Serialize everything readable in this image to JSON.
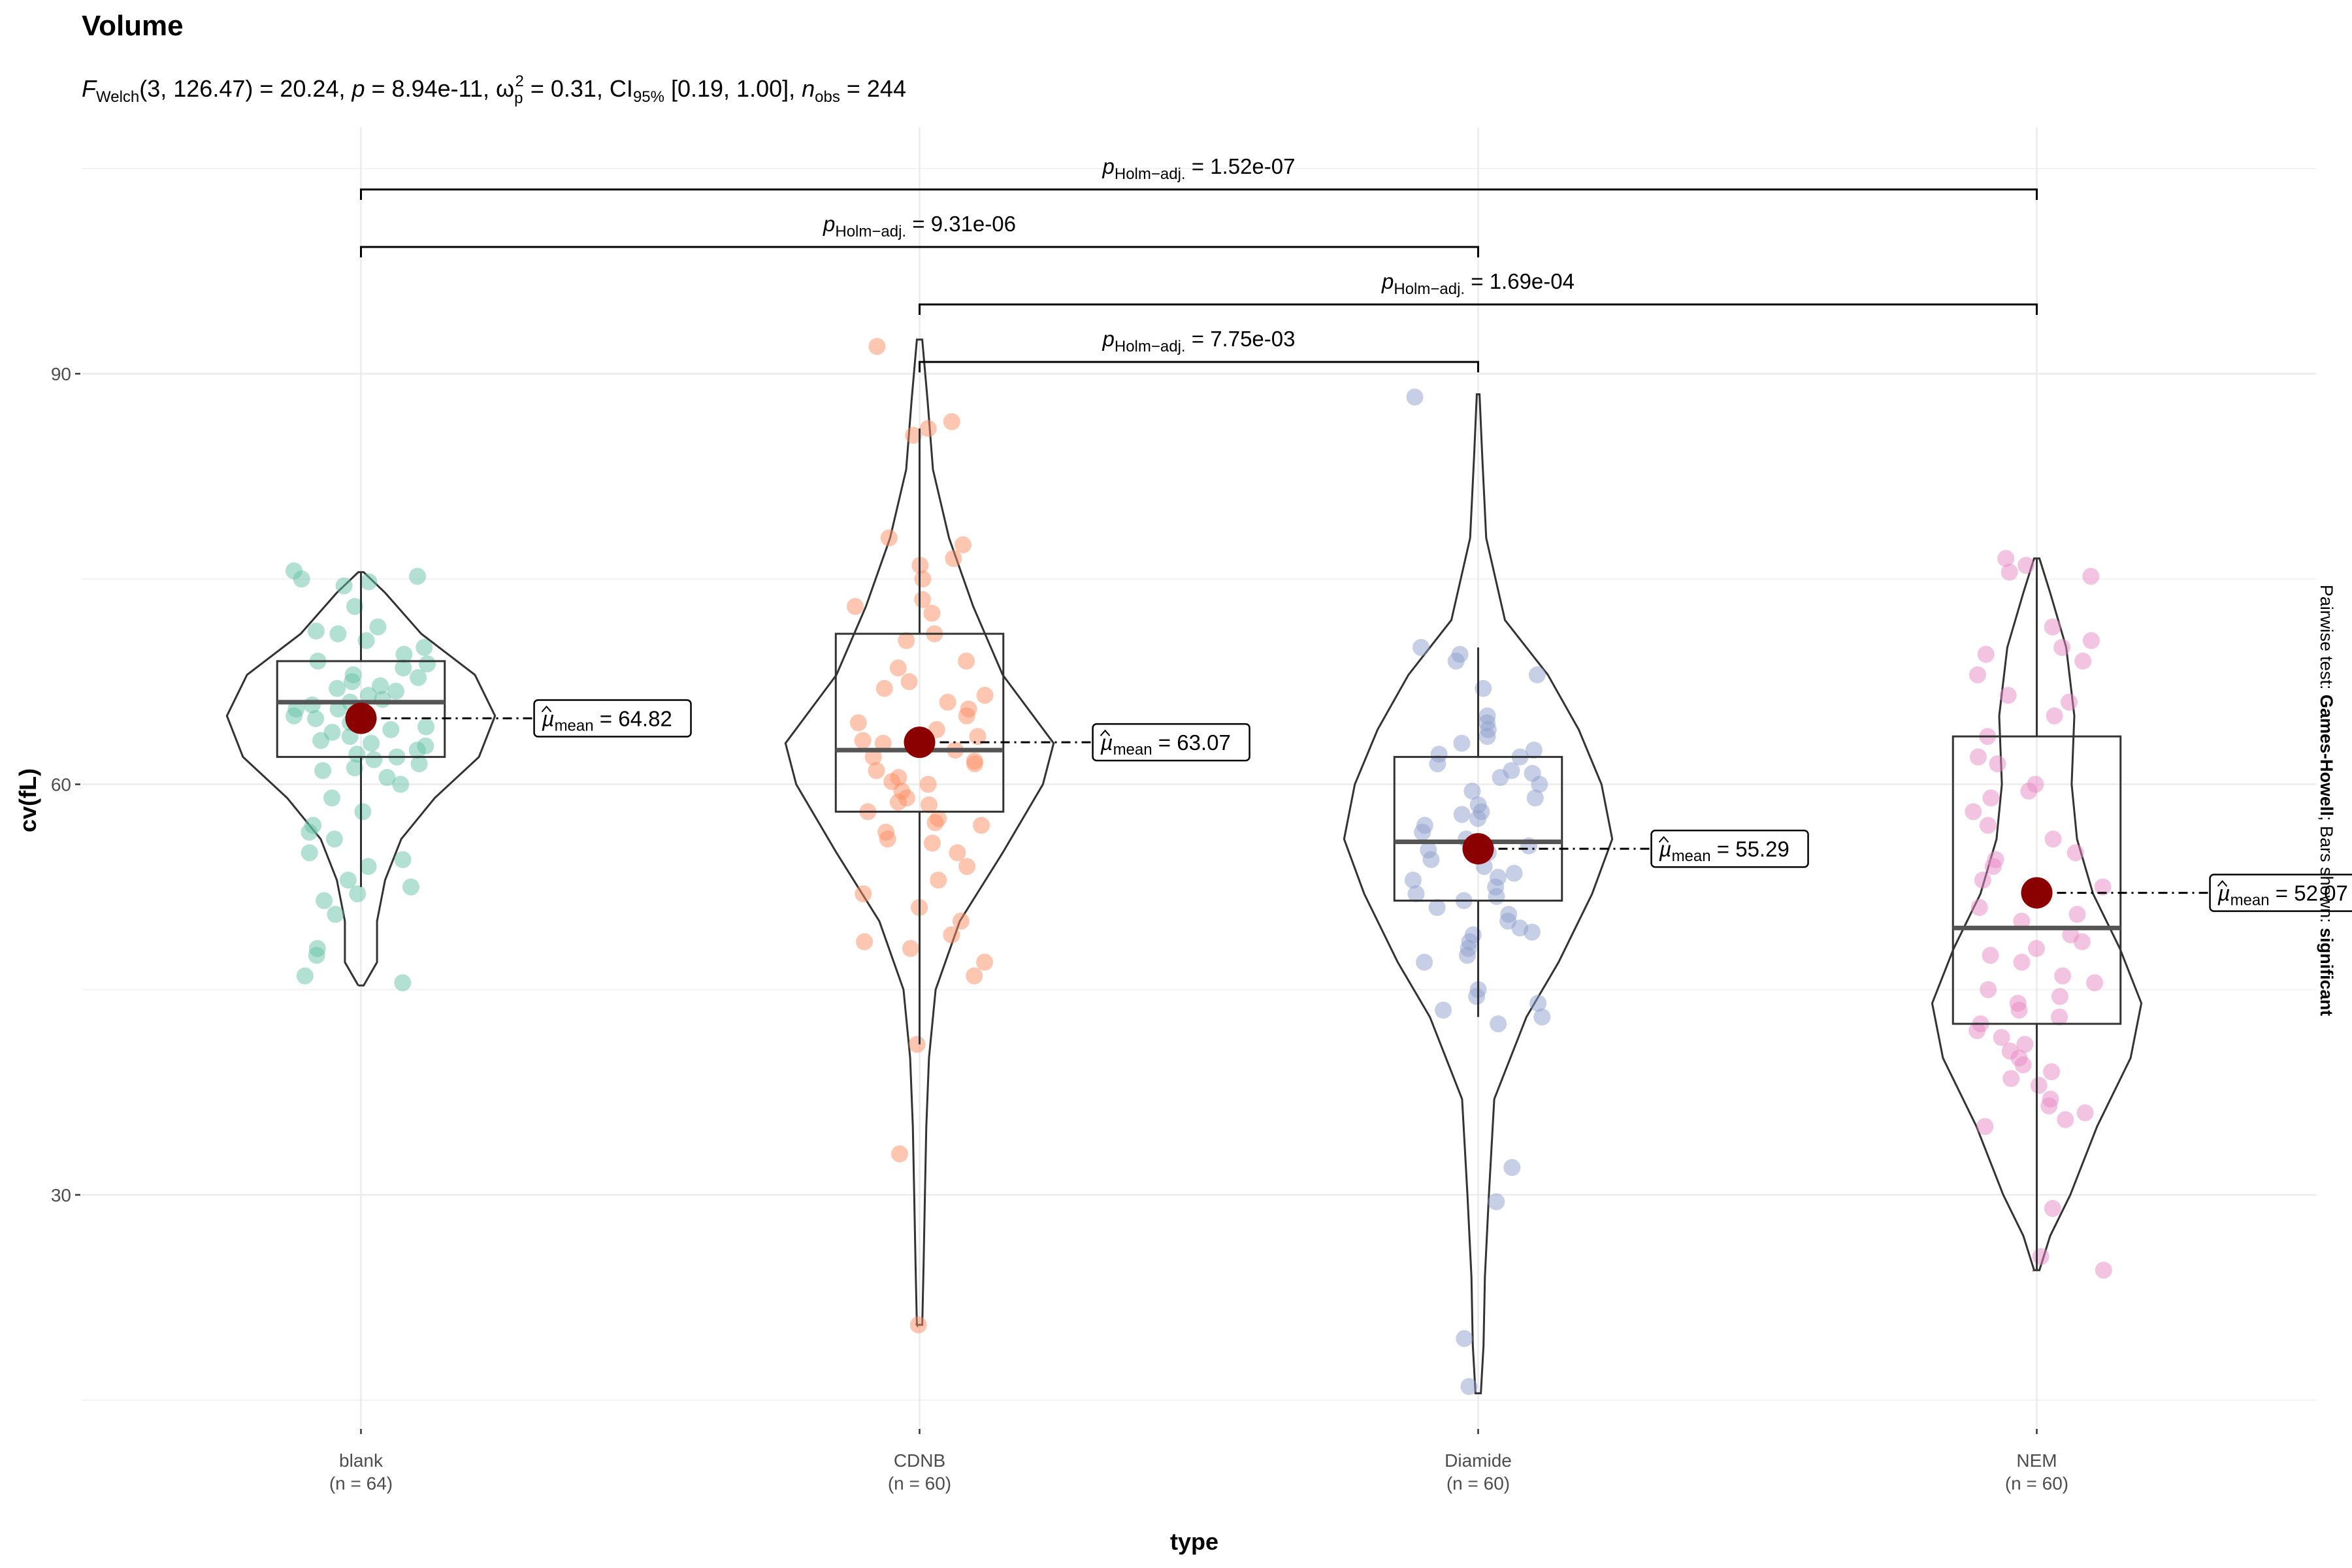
{
  "chart_data": {
    "type": "violin-box-scatter",
    "title": "Volume",
    "subtitle": {
      "stat_sub": "Welch",
      "stat_args": "(3, 126.47) = 20.24, ",
      "p_text": " = 8.94e-11, ",
      "effect_sub": "p",
      "effect_sup": "2",
      "effect_text": " = 0.31, CI",
      "ci_sub": "95%",
      "ci_text": " [0.19, 1.00], ",
      "n_sub": "obs",
      "n_text": " = 244"
    },
    "xlabel": "type",
    "ylabel": "cv(fL)",
    "side_caption": {
      "prefix": "Pairwise test: ",
      "test": "Games-Howell",
      "middle": "; Bars shown: ",
      "shown": "significant"
    },
    "ylim": [
      13,
      108
    ],
    "yticks": [
      30,
      60,
      90
    ],
    "categories": [
      "blank",
      "CDNB",
      "Diamide",
      "NEM"
    ],
    "counts": [
      "(n = 64)",
      "(n = 60)",
      "(n = 60)",
      "(n = 60)"
    ],
    "colors": [
      "#66c2a5",
      "#fc8d62",
      "#8da0cb",
      "#e78ac3"
    ],
    "mean_color": "#8b0000",
    "means": [
      64.82,
      63.07,
      55.29,
      52.07
    ],
    "mean_labels": [
      "= 64.82",
      "= 63.07",
      "= 55.29",
      "= 52.07"
    ],
    "mean_label_sub": "mean",
    "boxes": [
      {
        "q1": 62.0,
        "median": 66.0,
        "q3": 69.0,
        "min": 52.5,
        "max": 75.5
      },
      {
        "q1": 58.0,
        "median": 62.5,
        "q3": 71.0,
        "min": 41.0,
        "max": 86.0
      },
      {
        "q1": 51.5,
        "median": 55.8,
        "q3": 62.0,
        "min": 43.0,
        "max": 70.0
      },
      {
        "q1": 42.5,
        "median": 49.5,
        "q3": 63.5,
        "min": 24.5,
        "max": 76.5
      }
    ],
    "violins": [
      {
        "bottom": 45.3,
        "top": 75.5,
        "profile": [
          [
            45.3,
            0.02
          ],
          [
            47,
            0.12
          ],
          [
            50,
            0.12
          ],
          [
            53,
            0.18
          ],
          [
            56,
            0.3
          ],
          [
            59,
            0.55
          ],
          [
            62,
            0.88
          ],
          [
            65,
            1.0
          ],
          [
            68,
            0.85
          ],
          [
            71,
            0.45
          ],
          [
            74,
            0.18
          ],
          [
            75.5,
            0.02
          ]
        ]
      },
      {
        "bottom": 20.5,
        "top": 92.5,
        "profile": [
          [
            20.5,
            0.02
          ],
          [
            25,
            0.03
          ],
          [
            30,
            0.04
          ],
          [
            35,
            0.05
          ],
          [
            40,
            0.07
          ],
          [
            45,
            0.12
          ],
          [
            50,
            0.3
          ],
          [
            55,
            0.62
          ],
          [
            60,
            0.92
          ],
          [
            63,
            1.0
          ],
          [
            68,
            0.62
          ],
          [
            73,
            0.4
          ],
          [
            78,
            0.22
          ],
          [
            83,
            0.1
          ],
          [
            88,
            0.06
          ],
          [
            92.5,
            0.02
          ]
        ]
      },
      {
        "bottom": 15.5,
        "top": 88.5,
        "profile": [
          [
            15.5,
            0.02
          ],
          [
            19,
            0.04
          ],
          [
            24,
            0.05
          ],
          [
            30,
            0.08
          ],
          [
            37,
            0.12
          ],
          [
            43,
            0.36
          ],
          [
            47,
            0.6
          ],
          [
            52,
            0.85
          ],
          [
            56,
            1.0
          ],
          [
            60,
            0.92
          ],
          [
            64,
            0.75
          ],
          [
            68,
            0.52
          ],
          [
            72,
            0.2
          ],
          [
            78,
            0.06
          ],
          [
            84,
            0.03
          ],
          [
            88.5,
            0.01
          ]
        ]
      },
      {
        "bottom": 24.5,
        "top": 76.5,
        "profile": [
          [
            24.5,
            0.02
          ],
          [
            27,
            0.1
          ],
          [
            30,
            0.25
          ],
          [
            35,
            0.45
          ],
          [
            40,
            0.7
          ],
          [
            44,
            0.78
          ],
          [
            48,
            0.62
          ],
          [
            52,
            0.42
          ],
          [
            56,
            0.3
          ],
          [
            60,
            0.26
          ],
          [
            65,
            0.28
          ],
          [
            70,
            0.22
          ],
          [
            74,
            0.1
          ],
          [
            76.5,
            0.02
          ]
        ]
      }
    ],
    "points": [
      [
        75.6,
        75.2,
        75.0,
        74.8,
        74.5,
        73.0,
        71.5,
        71.2,
        71.0,
        70.5,
        70.0,
        69.5,
        69.0,
        68.8,
        68.5,
        68.0,
        67.8,
        67.5,
        67.2,
        67.0,
        66.8,
        66.5,
        66.2,
        66.0,
        65.8,
        65.5,
        65.2,
        65.0,
        64.8,
        64.5,
        64.2,
        64.0,
        63.8,
        63.5,
        63.2,
        63.0,
        62.8,
        62.5,
        62.2,
        62.0,
        61.8,
        61.5,
        61.2,
        61.0,
        60.5,
        60.0,
        59.0,
        58.0,
        57.0,
        56.5,
        56.0,
        55.0,
        54.5,
        54.0,
        53.0,
        52.5,
        52.0,
        51.5,
        50.5,
        48.0,
        47.5,
        46.0,
        45.5,
        65.5
      ],
      [
        92.0,
        86.5,
        86.0,
        85.5,
        78.0,
        77.5,
        76.5,
        76.0,
        75.0,
        73.5,
        73.0,
        72.5,
        71.0,
        70.5,
        69.0,
        68.5,
        67.5,
        67.0,
        66.5,
        66.0,
        65.5,
        65.0,
        64.5,
        64.0,
        63.5,
        63.0,
        62.5,
        62.0,
        61.5,
        61.0,
        60.5,
        60.0,
        59.5,
        59.0,
        58.5,
        58.0,
        57.5,
        57.0,
        56.5,
        56.0,
        55.0,
        54.0,
        53.0,
        52.0,
        51.0,
        50.0,
        49.0,
        48.5,
        48.0,
        47.0,
        46.0,
        41.0,
        33.0,
        20.5,
        63.2,
        61.7,
        60.2,
        58.7,
        57.2,
        55.7
      ],
      [
        88.3,
        70.0,
        69.5,
        69.0,
        68.0,
        67.0,
        65.0,
        64.5,
        64.0,
        63.5,
        63.0,
        62.5,
        62.0,
        61.5,
        61.0,
        60.5,
        60.0,
        59.5,
        59.0,
        58.5,
        58.0,
        57.5,
        57.0,
        56.5,
        56.0,
        55.5,
        55.0,
        54.5,
        54.0,
        53.5,
        53.0,
        52.5,
        52.0,
        51.5,
        51.0,
        50.5,
        50.0,
        49.5,
        49.0,
        48.5,
        48.0,
        47.5,
        47.0,
        45.0,
        44.5,
        44.0,
        43.5,
        43.0,
        42.5,
        32.0,
        29.5,
        19.5,
        16.0,
        55.2,
        57.8,
        53.2,
        60.8,
        51.8,
        62.2,
        49.2
      ],
      [
        76.5,
        76.0,
        75.5,
        75.2,
        71.5,
        70.5,
        70.0,
        69.5,
        69.0,
        68.0,
        66.5,
        66.0,
        65.0,
        63.5,
        62.0,
        61.5,
        60.0,
        59.5,
        59.0,
        58.0,
        57.0,
        56.0,
        55.0,
        54.5,
        54.0,
        53.0,
        52.5,
        51.0,
        50.5,
        50.0,
        49.0,
        48.5,
        48.0,
        47.5,
        47.0,
        46.0,
        45.5,
        45.0,
        44.5,
        44.0,
        43.5,
        43.0,
        42.5,
        42.0,
        41.5,
        41.0,
        40.5,
        40.0,
        39.5,
        39.0,
        38.5,
        38.0,
        37.0,
        36.5,
        36.0,
        35.5,
        35.0,
        29.0,
        25.5,
        24.5
      ]
    ],
    "comparisons": [
      {
        "from": 0,
        "to": 3,
        "label": " = 1.52e-07"
      },
      {
        "from": 0,
        "to": 2,
        "label": " = 9.31e-06"
      },
      {
        "from": 1,
        "to": 3,
        "label": " = 1.69e-04"
      },
      {
        "from": 1,
        "to": 2,
        "label": " = 7.75e-03"
      }
    ],
    "comparison_prefix": "p",
    "comparison_sub": "Holm−adj."
  }
}
